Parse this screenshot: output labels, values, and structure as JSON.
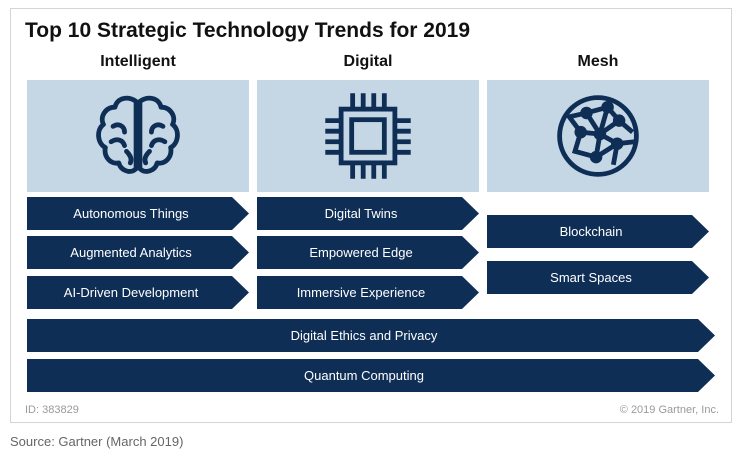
{
  "title": "Top 10 Strategic Technology Trends for 2019",
  "columns": [
    {
      "heading": "Intelligent",
      "icon": "brain-icon",
      "items": [
        "Autonomous Things",
        "Augmented Analytics",
        "AI-Driven Development"
      ]
    },
    {
      "heading": "Digital",
      "icon": "chip-icon",
      "items": [
        "Digital Twins",
        "Empowered Edge",
        "Immersive Experience"
      ]
    },
    {
      "heading": "Mesh",
      "icon": "network-globe-icon",
      "items": [
        "Blockchain",
        "Smart Spaces"
      ]
    }
  ],
  "cross_cutting": [
    "Digital Ethics and Privacy",
    "Quantum Computing"
  ],
  "footer": {
    "id": "ID: 383829",
    "copyright": "© 2019 Gartner, Inc."
  },
  "source": "Source: Gartner (March 2019)",
  "colors": {
    "chevron": "#0f2e56",
    "tile": "#c5d7e5",
    "icon": "#0f2e56"
  }
}
